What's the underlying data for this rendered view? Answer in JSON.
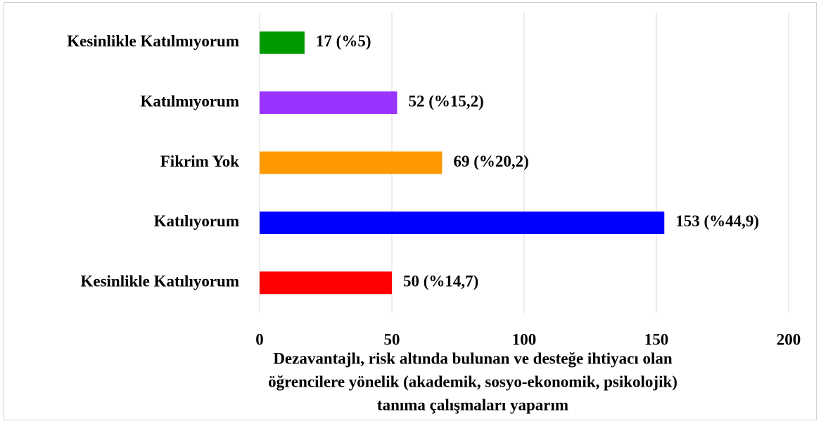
{
  "chart_data": {
    "type": "barh",
    "categories": [
      "Kesinlikle Katılmıyorum",
      "Katılmıyorum",
      "Fikrim Yok",
      "Katılıyorum",
      "Kesinlikle Katılıyorum"
    ],
    "values": [
      17,
      52,
      69,
      153,
      50
    ],
    "value_labels": [
      "17 (%5)",
      "52 (%15,2)",
      "69 (%20,2)",
      "153 (%44,9)",
      "50 (%14,7)"
    ],
    "colors": [
      "#009900",
      "#9933ff",
      "#ff9900",
      "#0000ff",
      "#ff0000"
    ],
    "xlim": [
      0,
      200
    ],
    "xticks": [
      0,
      50,
      100,
      150,
      200
    ],
    "grid": true,
    "xlabel": [
      "Dezavantajlı, risk altında bulunan ve desteğe ihtiyacı olan",
      "öğrencilere yönelik (akademik, sosyo-ekonomik, psikolojik)",
      "tanıma çalışmaları yaparım"
    ]
  }
}
